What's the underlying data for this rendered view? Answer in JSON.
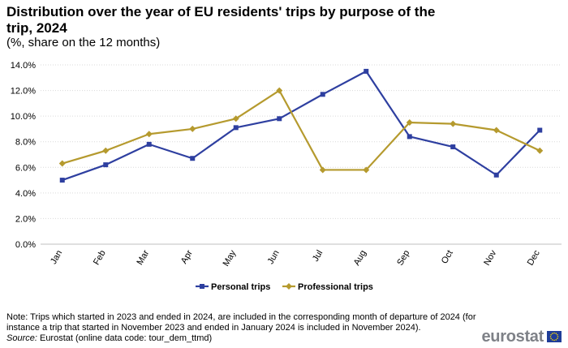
{
  "header": {
    "title": "Distribution over the year of EU residents' trips by purpose of the trip, 2024",
    "subtitle": "(%, share on the 12 months)"
  },
  "chart_data": {
    "type": "line",
    "categories": [
      "Jan",
      "Feb",
      "Mar",
      "Apr",
      "May",
      "Jun",
      "Jul",
      "Aug",
      "Sep",
      "Oct",
      "Nov",
      "Dec"
    ],
    "series": [
      {
        "name": "Personal trips",
        "color": "#2e3fa0",
        "marker": "square",
        "values": [
          5.0,
          6.2,
          7.8,
          6.7,
          9.1,
          9.8,
          11.7,
          13.5,
          8.4,
          7.6,
          5.4,
          8.9
        ]
      },
      {
        "name": "Professional trips",
        "color": "#b59a2e",
        "marker": "diamond",
        "values": [
          6.3,
          7.3,
          8.6,
          9.0,
          9.8,
          12.0,
          5.8,
          5.8,
          9.5,
          9.4,
          8.9,
          7.3
        ]
      }
    ],
    "yticks": [
      "0.0%",
      "2.0%",
      "4.0%",
      "6.0%",
      "8.0%",
      "10.0%",
      "12.0%",
      "14.0%"
    ],
    "ylim": [
      0,
      14
    ],
    "ystep": 2,
    "grid": true,
    "legend_position": "bottom"
  },
  "footer": {
    "note": "Note: Trips which started in 2023 and ended in 2024, are included in the corresponding month of departure of 2024 (for instance a trip that started in November 2023 and ended in January 2024 is included in November 2024).",
    "source_label": "Source:",
    "source_text": " Eurostat (online data code: tour_dem_ttmd)"
  },
  "logo": {
    "text": "eurostat"
  }
}
